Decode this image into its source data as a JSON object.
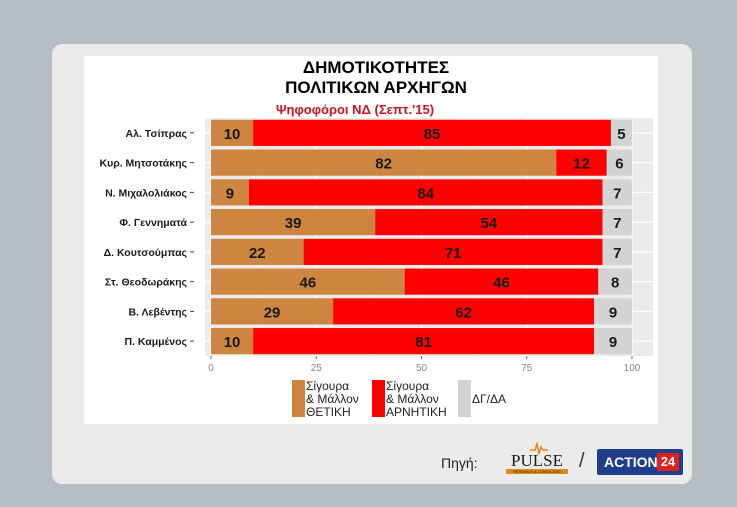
{
  "chart_data": {
    "type": "bar",
    "stacked": true,
    "orientation": "horizontal",
    "title": "ΔΗΜΟΤΙΚΟΤΗΤΕΣ ΠΟΛΙΤΙΚΩΝ ΑΡΧΗΓΩΝ",
    "title_lines": [
      "ΔΗΜΟΤΙΚΟΤΗΤΕΣ",
      "ΠΟΛΙΤΙΚΩΝ ΑΡΧΗΓΩΝ"
    ],
    "subtitle": "Ψηφοφόροι ΝΔ (Σεπτ.'15)",
    "categories": [
      "Αλ. Τσίπρας",
      "Κυρ. Μητσοτάκης",
      "Ν. Μιχαλολιάκος",
      "Φ. Γεννηματά",
      "Δ. Κουτσούμπας",
      "Στ. Θεοδωράκης",
      "Β. Λεβέντης",
      "Π. Καμμένος"
    ],
    "series": [
      {
        "name": "Σίγουρα & Μάλλον ΘΕΤΙΚΗ",
        "legend_lines": [
          "Σίγουρα",
          "& Μάλλον",
          "ΘΕΤΙΚΗ"
        ],
        "color": "#cd853f",
        "values": [
          10,
          82,
          9,
          39,
          22,
          46,
          29,
          10
        ]
      },
      {
        "name": "Σίγουρα & Μάλλον ΑΡΝΗΤΙΚΗ",
        "legend_lines": [
          "Σίγουρα",
          "& Μάλλον",
          "ΑΡΝΗΤΙΚΗ"
        ],
        "color": "#ff0000",
        "values": [
          85,
          12,
          84,
          54,
          71,
          46,
          62,
          81
        ]
      },
      {
        "name": "ΔΓ/ΔΑ",
        "legend_lines": [
          "ΔΓ/ΔΑ"
        ],
        "color": "#d3d3d3",
        "values": [
          5,
          6,
          7,
          7,
          7,
          8,
          9,
          9
        ]
      }
    ],
    "x_ticks": [
      "0",
      "25",
      "50",
      "75",
      "100"
    ],
    "xlim": [
      0,
      100
    ]
  },
  "footer": {
    "source_label": "Πηγή:",
    "pulse_logo_text": "PULSE",
    "pulse_logo_subtext": "RESEARCH & CONSULTING",
    "separator": "/",
    "action_logo_word": "ACTION",
    "action_logo_number": "24"
  }
}
